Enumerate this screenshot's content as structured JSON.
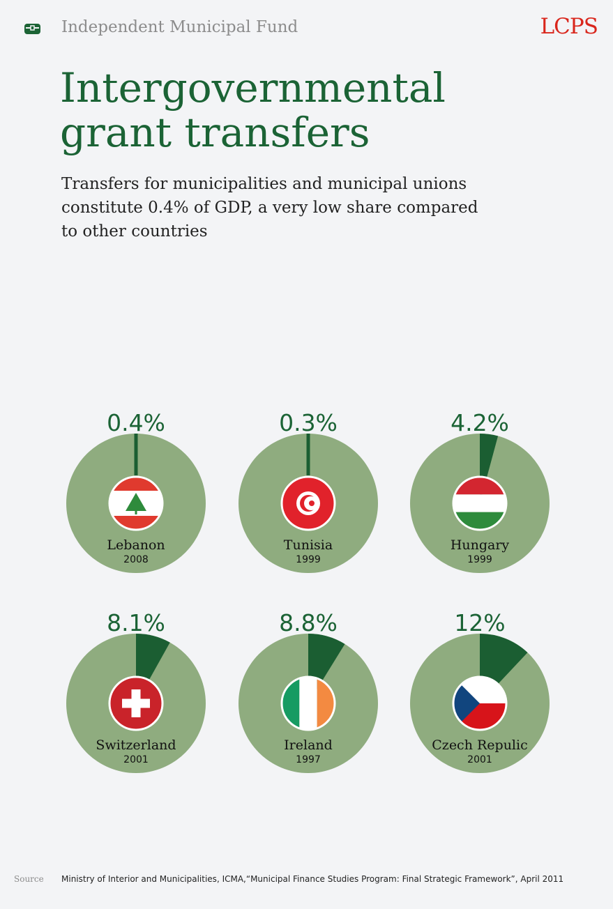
{
  "header": {
    "title": "Independent Municipal Fund",
    "logo": "LCPS",
    "icon": "briefcase-icon"
  },
  "title_line1": "Intergovernmental",
  "title_line2": "grant transfers",
  "subtitle": "Transfers for municipalities and municipal unions constitute 0.4% of GDP, a very low share compared to other countries",
  "colors": {
    "pie_base": "#8fac7f",
    "pie_slice": "#1b5e32",
    "title": "#1b6335",
    "logo": "#d9261c"
  },
  "chart_data": {
    "type": "pie",
    "title": "Intergovernmental grant transfers",
    "unit": "% of GDP",
    "items": [
      {
        "country": "Lebanon",
        "year": "2008",
        "value": 0.4,
        "label": "0.4%",
        "flag": "lebanon-flag-icon"
      },
      {
        "country": "Tunisia",
        "year": "1999",
        "value": 0.3,
        "label": "0.3%",
        "flag": "tunisia-flag-icon"
      },
      {
        "country": "Hungary",
        "year": "1999",
        "value": 4.2,
        "label": "4.2%",
        "flag": "hungary-flag-icon"
      },
      {
        "country": "Switzerland",
        "year": "2001",
        "value": 8.1,
        "label": "8.1%",
        "flag": "switzerland-flag-icon"
      },
      {
        "country": "Ireland",
        "year": "1997",
        "value": 8.8,
        "label": "8.8%",
        "flag": "ireland-flag-icon"
      },
      {
        "country": "Czech Repulic",
        "year": "2001",
        "value": 12,
        "label": "12%",
        "flag": "czech-republic-flag-icon"
      }
    ]
  },
  "footer": {
    "source_label": "Source",
    "source_text": "Ministry of Interior and Municipalities, ICMA,“Municipal Finance Studies Program: Final Strategic Framework”, April 2011"
  }
}
